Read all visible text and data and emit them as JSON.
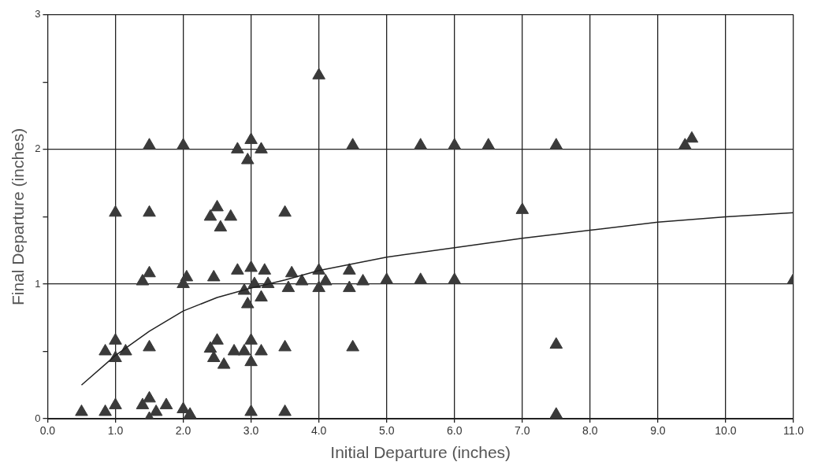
{
  "chart_data": {
    "type": "scatter",
    "xlabel": "Initial Departure (inches)",
    "ylabel": "Final Departure (inches)",
    "marker": "triangle",
    "grid": true,
    "xlim": [
      0,
      11
    ],
    "ylim": [
      0,
      3
    ],
    "xticks": [
      {
        "value": 0,
        "label": "0.0"
      },
      {
        "value": 1,
        "label": "1.0"
      },
      {
        "value": 2,
        "label": "2.0"
      },
      {
        "value": 3,
        "label": "3.0"
      },
      {
        "value": 4,
        "label": "4.0"
      },
      {
        "value": 5,
        "label": "5.0"
      },
      {
        "value": 6,
        "label": "6.0"
      },
      {
        "value": 7,
        "label": "7.0"
      },
      {
        "value": 8,
        "label": "8.0"
      },
      {
        "value": 9,
        "label": "9.0"
      },
      {
        "value": 10,
        "label": "10.0"
      },
      {
        "value": 11,
        "label": "11.0"
      }
    ],
    "yticks": [
      0,
      {
        "value": 0.5,
        "label": null
      },
      1,
      {
        "value": 1.5,
        "label": null
      },
      2,
      {
        "value": 2.5,
        "label": null
      },
      3
    ],
    "series": [
      {
        "type": "scatter",
        "color": "#3a3a3a",
        "x": [
          0.5,
          0.85,
          1.0,
          1.4,
          1.5,
          1.5,
          1.6,
          1.75,
          2.0,
          2.1,
          3.0,
          3.5,
          7.5,
          0.85,
          1.0,
          1.0,
          1.15,
          1.5,
          2.4,
          2.5,
          2.45,
          2.6,
          2.75,
          2.9,
          3.0,
          3.0,
          3.15,
          3.5,
          4.5,
          7.5,
          1.4,
          1.5,
          2.0,
          2.05,
          2.45,
          2.8,
          2.9,
          2.95,
          3.0,
          3.05,
          3.15,
          3.2,
          3.25,
          3.55,
          3.6,
          3.75,
          4.0,
          4.0,
          4.1,
          4.45,
          4.45,
          4.65,
          5.0,
          5.5,
          6.0,
          11.0,
          1.0,
          1.5,
          2.4,
          2.5,
          2.55,
          2.7,
          3.5,
          7.0,
          1.5,
          2.0,
          2.8,
          3.0,
          2.95,
          3.15,
          4.5,
          5.5,
          6.0,
          6.5,
          7.5,
          9.4,
          9.5,
          4.0
        ],
        "values": [
          0.05,
          0.05,
          0.1,
          0.1,
          0.15,
          0.0,
          0.05,
          0.1,
          0.07,
          0.03,
          0.05,
          0.05,
          0.03,
          0.5,
          0.58,
          0.45,
          0.5,
          0.53,
          0.52,
          0.58,
          0.45,
          0.4,
          0.5,
          0.5,
          0.58,
          0.42,
          0.5,
          0.53,
          0.53,
          0.55,
          1.02,
          1.08,
          1.0,
          1.05,
          1.05,
          1.1,
          0.95,
          0.85,
          1.12,
          1.0,
          0.9,
          1.1,
          1.0,
          0.97,
          1.08,
          1.02,
          1.1,
          0.97,
          1.02,
          1.1,
          0.97,
          1.02,
          1.03,
          1.03,
          1.03,
          1.03,
          1.53,
          1.53,
          1.5,
          1.57,
          1.42,
          1.5,
          1.53,
          1.55,
          2.03,
          2.03,
          2.0,
          2.07,
          1.92,
          2.0,
          2.03,
          2.03,
          2.03,
          2.03,
          2.03,
          2.03,
          2.08,
          2.55
        ]
      },
      {
        "type": "line",
        "marker": "none",
        "color": "#222222",
        "x": [
          0.5,
          1,
          1.5,
          2,
          2.5,
          3,
          3.5,
          4,
          5,
          6,
          7,
          8,
          9,
          10,
          11
        ],
        "values": [
          0.25,
          0.47,
          0.65,
          0.8,
          0.9,
          0.97,
          1.03,
          1.1,
          1.2,
          1.27,
          1.34,
          1.4,
          1.46,
          1.5,
          1.53
        ]
      }
    ]
  }
}
